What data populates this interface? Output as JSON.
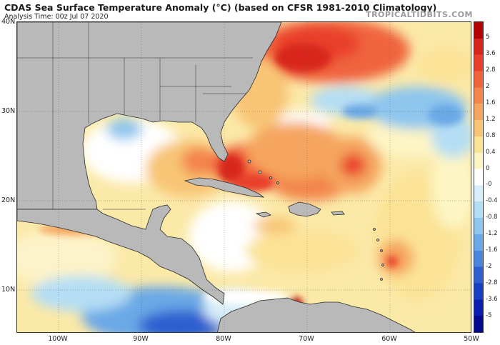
{
  "header": {
    "title": "CDAS Sea Surface Temperature Anomaly (°C) (based on CFSR 1981-2010 Climatology)",
    "analysis_time": "Analysis Time: 00z Jul 07 2020",
    "brand": "TROPICALTIDBITS.COM"
  },
  "axes": {
    "lat_labels": [
      "40N",
      "30N",
      "20N",
      "10N"
    ],
    "lon_labels": [
      "100W",
      "90W",
      "80W",
      "70W",
      "60W",
      "50W"
    ]
  },
  "colorbar": {
    "labels": [
      "5",
      "3.6",
      "2.8",
      "2",
      "1.6",
      "1.2",
      "0.8",
      "0.4",
      "0",
      "-0",
      "-0.4",
      "-0.8",
      "-1.2",
      "-1.6",
      "-2",
      "-2.8",
      "-3.6",
      "-5"
    ],
    "colors": [
      "#b40000",
      "#d8261d",
      "#e9412c",
      "#f0643c",
      "#f3854c",
      "#f5a55f",
      "#f8c576",
      "#fbe396",
      "#fdf5c4",
      "#ffffff",
      "#d7eef8",
      "#b4def4",
      "#8ec6ee",
      "#6aa8e6",
      "#4a86db",
      "#2f5fcf",
      "#1a3ec2",
      "#0c1fae",
      "#050a8e"
    ]
  },
  "map": {
    "land_color": "#b9b9b9",
    "region": "Gulf of Mexico, Caribbean and western North Atlantic"
  }
}
